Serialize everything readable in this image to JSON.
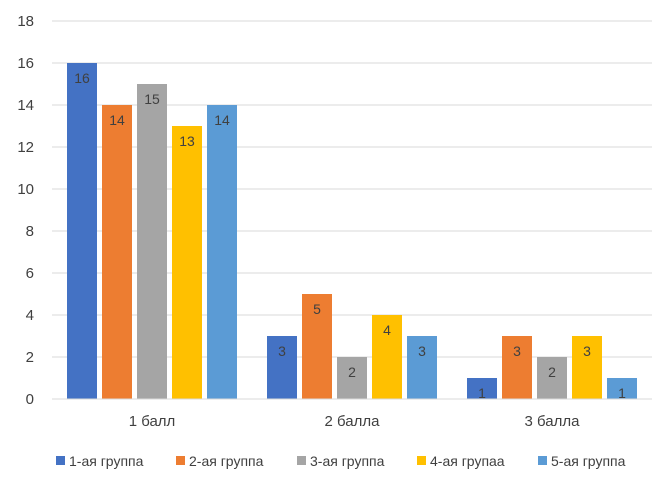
{
  "chart_data": {
    "type": "bar",
    "categories": [
      "1 балл",
      "2 балла",
      "3 балла"
    ],
    "series": [
      {
        "name": "1-ая группа",
        "values": [
          16,
          3,
          1
        ],
        "color": "#4472C4"
      },
      {
        "name": "2-ая группа",
        "values": [
          14,
          5,
          3
        ],
        "color": "#ED7D31"
      },
      {
        "name": "3-ая группа",
        "values": [
          15,
          2,
          2
        ],
        "color": "#A5A5A5"
      },
      {
        "name": "4-ая групаа",
        "values": [
          13,
          4,
          3
        ],
        "color": "#FFC000"
      },
      {
        "name": "5-ая группа",
        "values": [
          14,
          3,
          1
        ],
        "color": "#5B9BD5"
      }
    ],
    "ylim": [
      0,
      18
    ],
    "yticks": [
      "0",
      "2",
      "4",
      "6",
      "8",
      "10",
      "12",
      "14",
      "16",
      "18"
    ],
    "grid": true,
    "data_labels": true,
    "legend": "bottom",
    "title": "",
    "xlabel": "",
    "ylabel": ""
  }
}
